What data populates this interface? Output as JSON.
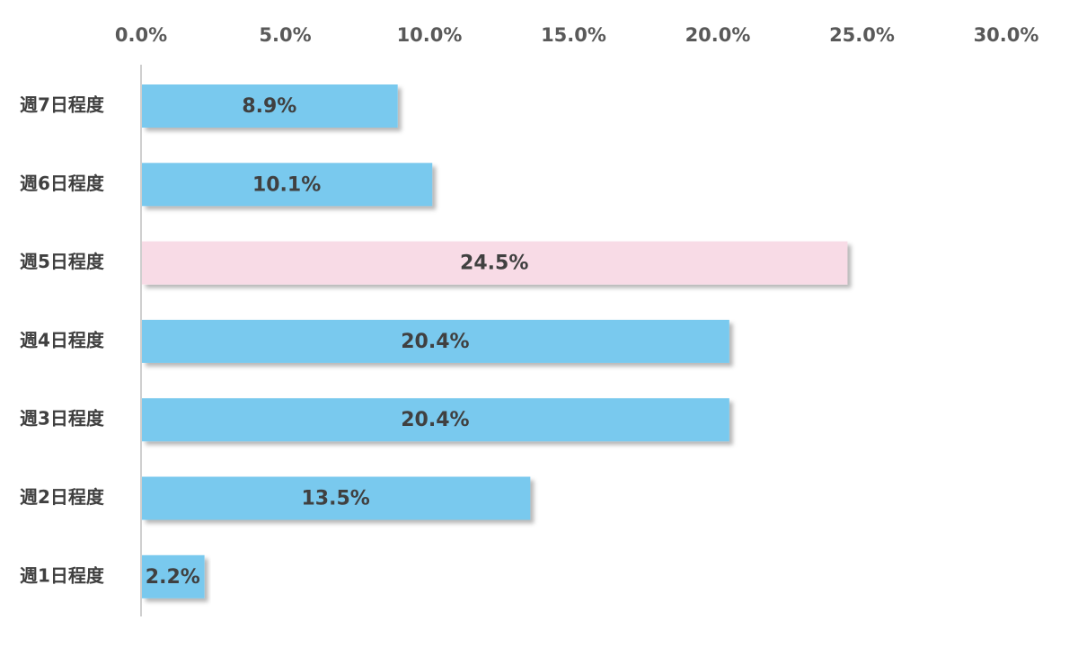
{
  "chart_data": {
    "type": "bar",
    "orientation": "horizontal",
    "categories": [
      "週7日程度",
      "週6日程度",
      "週5日程度",
      "週4日程度",
      "週3日程度",
      "週2日程度",
      "週1日程度"
    ],
    "values": [
      8.9,
      10.1,
      24.5,
      20.4,
      20.4,
      13.5,
      2.2
    ],
    "value_labels": [
      "8.9%",
      "10.1%",
      "24.5%",
      "20.4%",
      "20.4%",
      "13.5%",
      "2.2%"
    ],
    "highlight_index": 2,
    "colors": {
      "bar": "#79c9ee",
      "highlight": "#f8dbe6",
      "axis": "#bfbfbf"
    },
    "xaxis": {
      "position": "top",
      "range": [
        0,
        30
      ],
      "ticks": [
        0,
        5,
        10,
        15,
        20,
        25,
        30
      ],
      "tick_labels": [
        "0.0%",
        "5.0%",
        "10.0%",
        "15.0%",
        "20.0%",
        "25.0%",
        "30.0%"
      ]
    },
    "grid": false,
    "legend": "none"
  }
}
